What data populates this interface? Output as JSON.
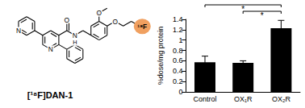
{
  "structure": {
    "label": "[¹⁸F]DAN-1",
    "atoms": {
      "pyridine_N": "N",
      "central_N": "N",
      "carbonyl_O": "O",
      "amide_N": "N",
      "amide_H": "H",
      "methoxy_O": "O",
      "ether_O": "O",
      "radiolabel": "¹⁸F"
    }
  },
  "chart_data": {
    "type": "bar",
    "ylabel": "%dose/mg protein",
    "categories": [
      "Control",
      "OX₁R",
      "OX₂R"
    ],
    "values": [
      0.57,
      0.56,
      1.23
    ],
    "errors": [
      0.12,
      0.04,
      0.15
    ],
    "color": "#000000",
    "ylim": [
      0,
      1.4
    ],
    "yticks": [
      0,
      0.2,
      0.4,
      0.6,
      0.8,
      1,
      1.2,
      1.4
    ],
    "grid": false,
    "significance": [
      {
        "from": "Control",
        "to": "OX₂R",
        "label": "*"
      },
      {
        "from": "OX₁R",
        "to": "OX₂R",
        "label": "*"
      }
    ]
  }
}
